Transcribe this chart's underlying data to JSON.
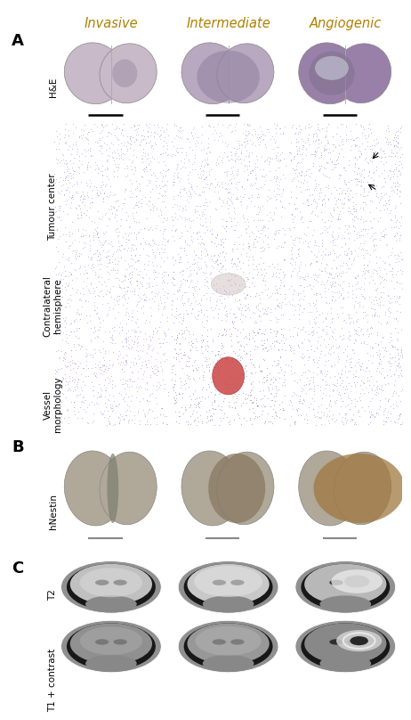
{
  "fig_width": 4.5,
  "fig_height": 7.75,
  "background_color": "#ffffff",
  "panel_A_label": "A",
  "panel_B_label": "B",
  "panel_C_label": "C",
  "col_headers": [
    "Invasive",
    "Intermediate",
    "Angiogenic"
  ],
  "row_labels_A": [
    "H&E",
    "Tumour center",
    "Contralateral\nhemisphere",
    "Vessel\nmorphology"
  ],
  "row_labels_B": [
    "hNestin"
  ],
  "row_labels_C": [
    "T2",
    "T1 + contrast"
  ],
  "col_header_color": "#b08000",
  "panel_label_fontsize": 13,
  "col_header_fontsize": 10.5,
  "row_label_fontsize": 7.5,
  "scale_bar_color": "#000000"
}
